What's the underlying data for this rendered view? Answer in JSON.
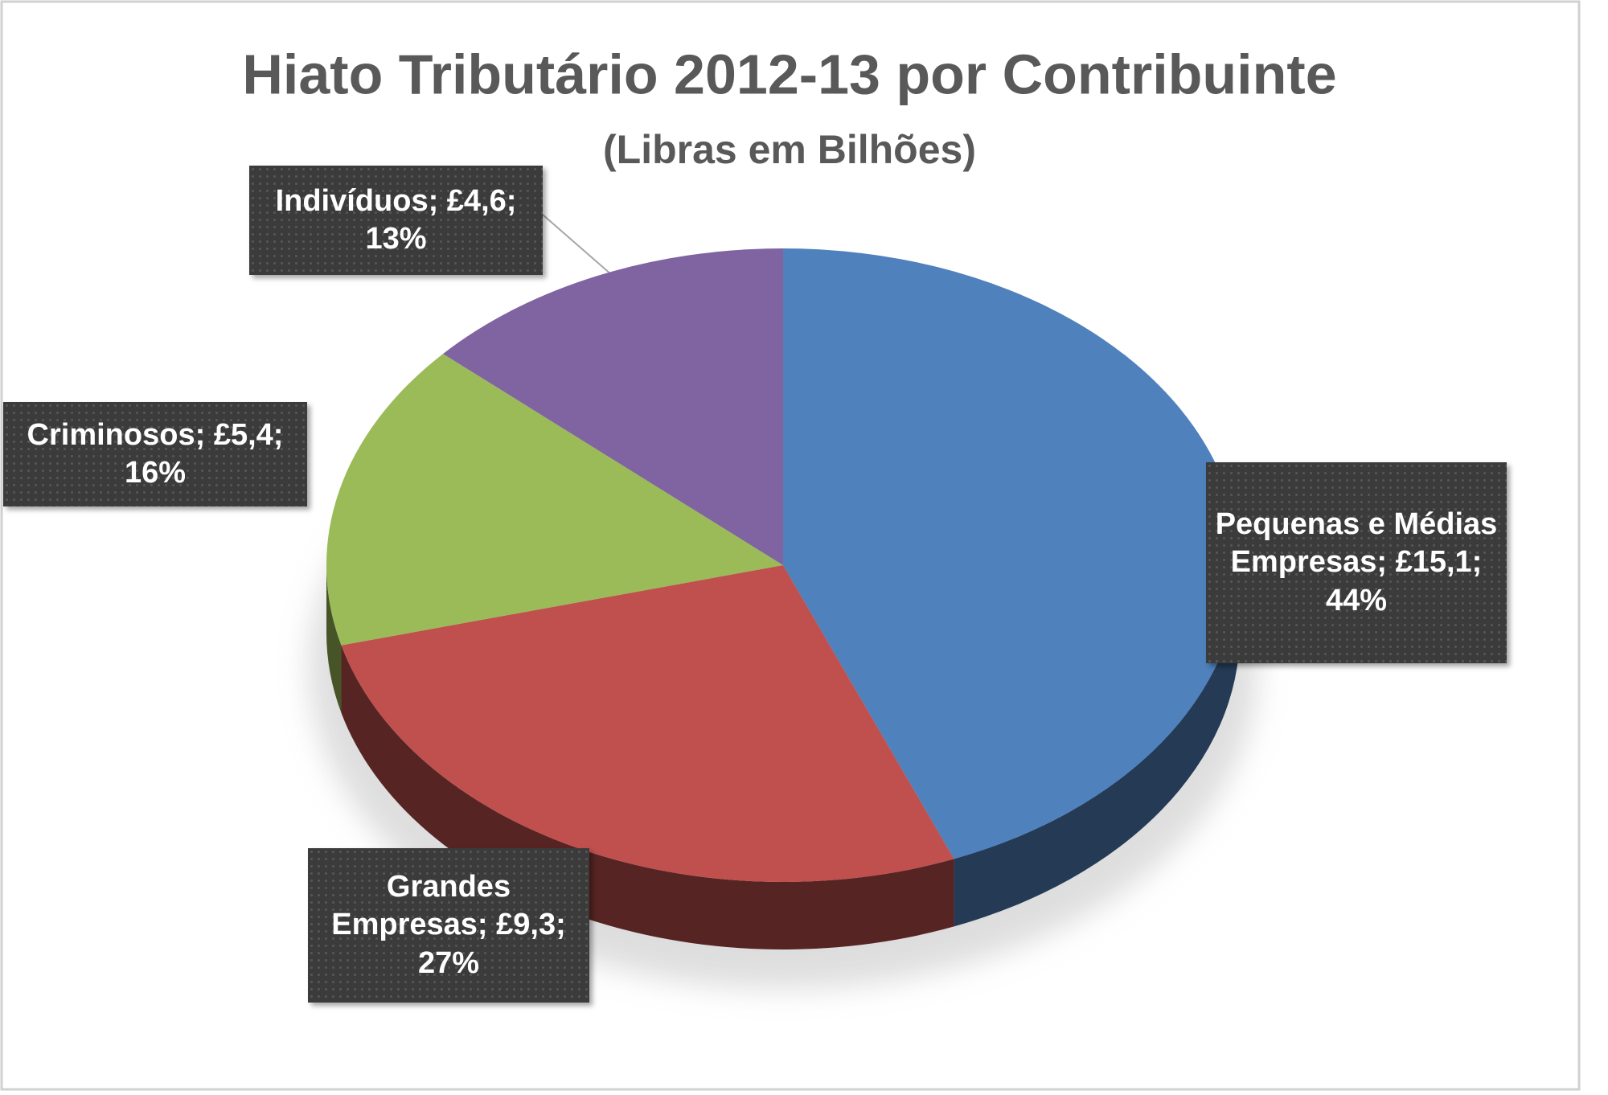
{
  "chart_data": {
    "type": "pie",
    "title": "Hiato Tributário 2012-13 por Contribuinte",
    "subtitle": "(Libras em Bilhões)",
    "categories": [
      "Pequenas e Médias Empresas",
      "Grandes Empresas",
      "Criminosos",
      "Indivíduos"
    ],
    "values": [
      15.1,
      9.3,
      5.4,
      4.6
    ],
    "value_labels": [
      "£15,1",
      "£9,3",
      "£5,4",
      "£4,6"
    ],
    "percent_labels": [
      "44%",
      "27%",
      "16%",
      "13%"
    ],
    "label_separator": ";",
    "colors": [
      "#4f81bd",
      "#c0504d",
      "#9bbb59",
      "#8064a2"
    ]
  }
}
